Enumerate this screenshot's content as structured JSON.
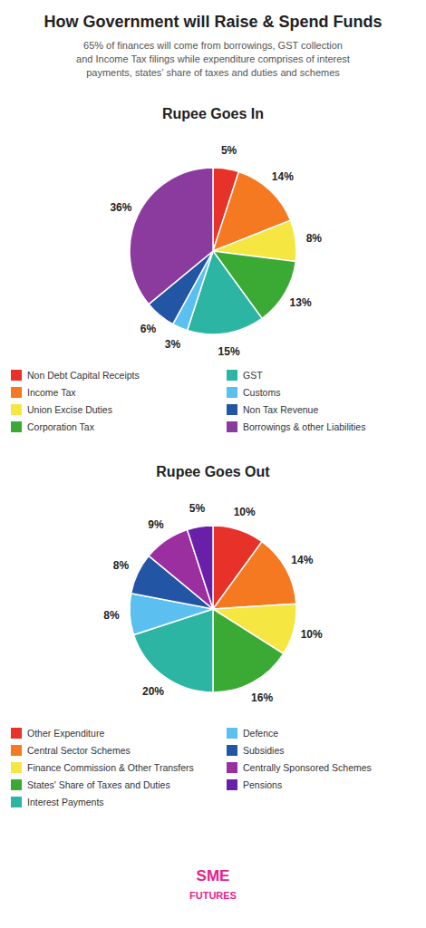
{
  "title": "How Government will Raise & Spend Funds",
  "subtitle": "65% of finances will come from borrowings, GST collection\nand Income Tax filings while expenditure comprises of interest\npayments, states’ share of taxes and duties and schemes",
  "annotations": [
    "SME",
    "FUTURES"
  ],
  "chart_data": [
    {
      "type": "pie",
      "title": "Rupee Goes In",
      "categories": [
        "Non Debt Capital Receipts",
        "Income Tax",
        "Union Excise Duties",
        "Corporation Tax",
        "GST",
        "Customs",
        "Non Tax Revenue",
        "Borrowings & other Liabilities"
      ],
      "values": [
        5,
        14,
        8,
        13,
        15,
        3,
        6,
        36
      ],
      "value_labels": [
        "5%",
        "14%",
        "8%",
        "13%",
        "15%",
        "3%",
        "6%",
        "36%"
      ],
      "colors": [
        "#e63229",
        "#f47920",
        "#f5e642",
        "#3aaa35",
        "#2db5a3",
        "#5bbfef",
        "#2255a4",
        "#8b3a9e"
      ],
      "data_labels": true,
      "legend": "bottom"
    },
    {
      "type": "pie",
      "title": "Rupee Goes Out",
      "categories": [
        "Other Expenditure",
        "Central Sector Schemes",
        "Finance Commission & Other Transfers",
        "States' Share of Taxes and Duties",
        "Interest Payments",
        "Defence",
        "Subsidies",
        "Centrally Sponsored Schemes",
        "Pensions"
      ],
      "values": [
        10,
        14,
        10,
        16,
        20,
        8,
        8,
        9,
        5
      ],
      "value_labels": [
        "10%",
        "14%",
        "10%",
        "16%",
        "20%",
        "8%",
        "8%",
        "9%",
        "5%"
      ],
      "colors": [
        "#e63229",
        "#f47920",
        "#f5e642",
        "#3aaa35",
        "#2db5a3",
        "#5bbfef",
        "#2255a4",
        "#9b2fa0",
        "#6a1fa8"
      ],
      "data_labels": true,
      "legend": "bottom"
    }
  ]
}
